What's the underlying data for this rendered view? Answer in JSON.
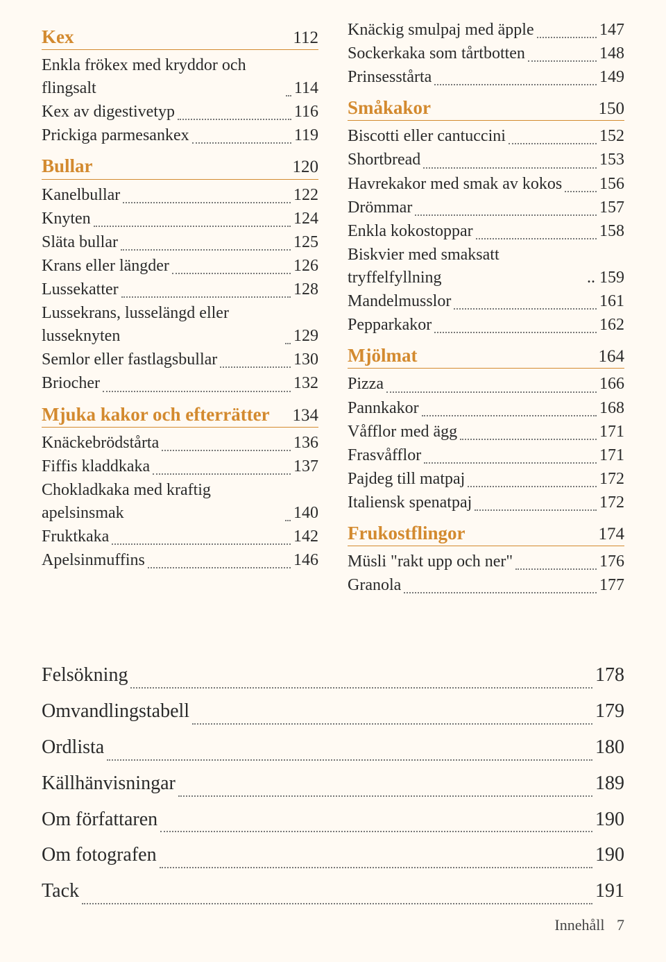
{
  "colors": {
    "accent": "#d38a2f",
    "background": "#fffaf3",
    "text": "#2a2a2a",
    "dots": "#777777"
  },
  "left": [
    {
      "title": "Kex",
      "page": "112",
      "items": [
        {
          "label": "Enkla frökex med kryddor och flingsalt",
          "page": "114"
        },
        {
          "label": "Kex av digestivetyp",
          "page": "116"
        },
        {
          "label": "Prickiga parmesankex",
          "page": "119"
        }
      ]
    },
    {
      "title": "Bullar",
      "page": "120",
      "items": [
        {
          "label": "Kanelbullar",
          "page": "122"
        },
        {
          "label": "Knyten",
          "page": "124"
        },
        {
          "label": "Släta bullar",
          "page": "125"
        },
        {
          "label": "Krans eller längder",
          "page": "126"
        },
        {
          "label": "Lussekatter",
          "page": "128"
        },
        {
          "label": "Lussekrans, lusselängd eller lusseknyten",
          "page": "129"
        },
        {
          "label": "Semlor eller fastlagsbullar",
          "page": "130"
        },
        {
          "label": "Briocher",
          "page": "132"
        }
      ]
    },
    {
      "title": "Mjuka kakor och efterrätter",
      "page": "134",
      "items": [
        {
          "label": "Knäckebrödstårta",
          "page": "136"
        },
        {
          "label": "Fiffis kladdkaka",
          "page": "137"
        },
        {
          "label": "Chokladkaka med kraftig apelsinsmak",
          "page": "140"
        },
        {
          "label": "Fruktkaka",
          "page": "142"
        },
        {
          "label": "Apelsinmuffins",
          "page": "146"
        }
      ]
    }
  ],
  "right_pre": [
    {
      "label": "Knäckig smulpaj med äpple",
      "page": "147"
    },
    {
      "label": "Sockerkaka som tårtbotten",
      "page": "148"
    },
    {
      "label": "Prinsesstårta",
      "page": "149"
    }
  ],
  "right": [
    {
      "title": "Småkakor",
      "page": "150",
      "items": [
        {
          "label": "Biscotti eller cantuccini",
          "page": "152"
        },
        {
          "label": "Shortbread",
          "page": "153"
        },
        {
          "label": "Havrekakor med smak av kokos",
          "page": "156"
        },
        {
          "label": "Drömmar",
          "page": "157"
        },
        {
          "label": "Enkla kokostoppar",
          "page": "158"
        },
        {
          "label": "Biskvier med smaksatt tryffelfyllning",
          "page": "159",
          "dotless": true
        },
        {
          "label": "Mandelmusslor",
          "page": "161"
        },
        {
          "label": "Pepparkakor",
          "page": "162"
        }
      ]
    },
    {
      "title": "Mjölmat",
      "page": "164",
      "items": [
        {
          "label": "Pizza",
          "page": "166"
        },
        {
          "label": "Pannkakor",
          "page": "168"
        },
        {
          "label": "Våfflor med ägg",
          "page": "171"
        },
        {
          "label": "Frasvåfflor",
          "page": "171"
        },
        {
          "label": "Pajdeg till matpaj",
          "page": "172"
        },
        {
          "label": "Italiensk spenatpaj",
          "page": "172"
        }
      ]
    },
    {
      "title": "Frukostflingor",
      "page": "174",
      "items": [
        {
          "label": "Müsli \"rakt upp och ner\"",
          "page": "176"
        },
        {
          "label": "Granola",
          "page": "177"
        }
      ]
    }
  ],
  "appendix": [
    {
      "label": "Felsökning",
      "page": "178"
    },
    {
      "label": "Omvandlingstabell",
      "page": "179"
    },
    {
      "label": "Ordlista",
      "page": "180"
    },
    {
      "label": "Källhänvisningar",
      "page": "189"
    },
    {
      "label": "Om författaren",
      "page": "190"
    },
    {
      "label": "Om fotografen",
      "page": "190"
    },
    {
      "label": "Tack",
      "page": "191"
    }
  ],
  "footer": {
    "label": "Innehåll",
    "page": "7"
  }
}
